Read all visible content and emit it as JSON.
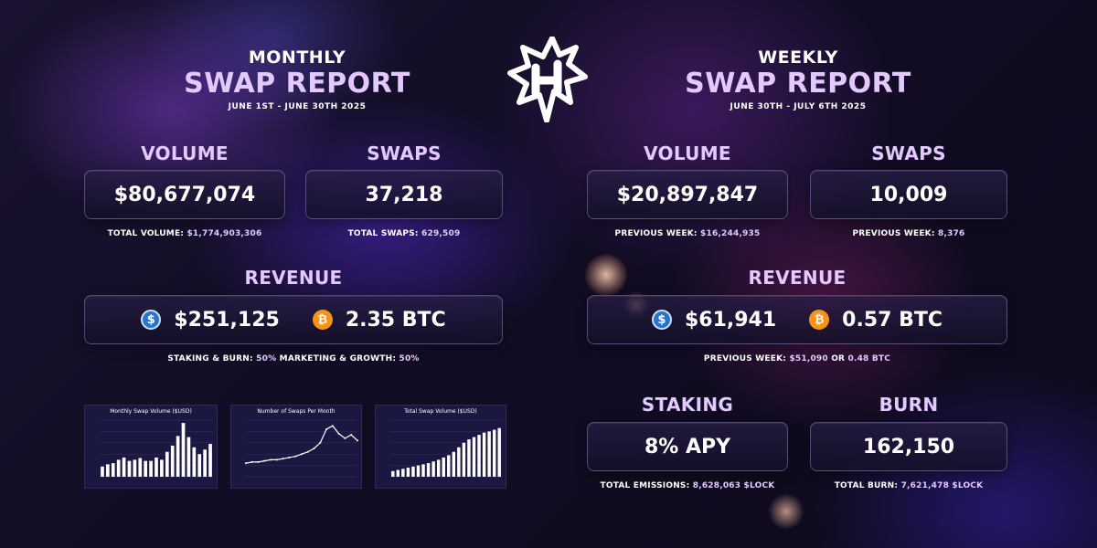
{
  "monthly": {
    "title_top": "MONTHLY",
    "title_main": "SWAP REPORT",
    "date_range": "JUNE 1ST - JUNE 30TH 2025",
    "volume_label": "VOLUME",
    "volume_value": "$80,677,074",
    "volume_sub_label": "TOTAL VOLUME:",
    "volume_sub_value": "$1,774,903,306",
    "swaps_label": "SWAPS",
    "swaps_value": "37,218",
    "swaps_sub_label": "TOTAL SWAPS:",
    "swaps_sub_value": "629,509",
    "revenue_label": "REVENUE",
    "revenue_usd": "$251,125",
    "revenue_btc": "2.35 BTC",
    "split_a_label": "STAKING & BURN:",
    "split_a_value": "50%",
    "split_b_label": "MARKETING & GROWTH:",
    "split_b_value": "50%"
  },
  "weekly": {
    "title_top": "WEEKLY",
    "title_main": "SWAP REPORT",
    "date_range": "JUNE 30TH - JULY 6TH 2025",
    "volume_label": "VOLUME",
    "volume_value": "$20,897,847",
    "volume_sub_label": "PREVIOUS WEEK:",
    "volume_sub_value": "$16,244,935",
    "swaps_label": "SWAPS",
    "swaps_value": "10,009",
    "swaps_sub_label": "PREVIOUS WEEK:",
    "swaps_sub_value": "8,376",
    "revenue_label": "REVENUE",
    "revenue_usd": "$61,941",
    "revenue_btc": "0.57 BTC",
    "revenue_sub_label": "PREVIOUS WEEK:",
    "revenue_sub_value_usd": "$51,090",
    "revenue_sub_or": "OR",
    "revenue_sub_value_btc": "0.48 BTC",
    "staking_label": "STAKING",
    "staking_value": "8% APY",
    "staking_sub_label": "TOTAL EMISSIONS:",
    "staking_sub_value": "8,628,063 $LOCK",
    "burn_label": "BURN",
    "burn_value": "162,150",
    "burn_sub_label": "TOTAL BURN:",
    "burn_sub_value": "7,621,478 $LOCK"
  },
  "icons": {
    "usd": "$",
    "btc": "₿"
  },
  "colors": {
    "accent": "#e3c9ff",
    "usdc": "#2775ca",
    "btc": "#f7931a",
    "chart_bg": "#1a1840"
  },
  "chart_data": [
    {
      "type": "bar",
      "title": "Monthly Swap Volume ($USD)",
      "values": [
        18,
        22,
        24,
        30,
        34,
        28,
        30,
        33,
        28,
        28,
        34,
        30,
        44,
        55,
        72,
        95,
        70,
        52,
        40,
        48,
        58
      ],
      "ylim": [
        0,
        100
      ]
    },
    {
      "type": "line",
      "title": "Number of Swaps Per Month",
      "values": [
        12,
        13,
        13,
        14,
        15,
        15,
        16,
        17,
        18,
        20,
        22,
        25,
        30,
        42,
        45,
        38,
        34,
        37,
        32
      ],
      "ylim": [
        0,
        50
      ]
    },
    {
      "type": "bar",
      "title": "Total Swap Volume ($USD)",
      "values": [
        10,
        12,
        14,
        16,
        18,
        20,
        22,
        24,
        27,
        30,
        34,
        38,
        44,
        52,
        60,
        66,
        70,
        74,
        78,
        80,
        83,
        86
      ],
      "ylim": [
        0,
        100
      ]
    }
  ]
}
